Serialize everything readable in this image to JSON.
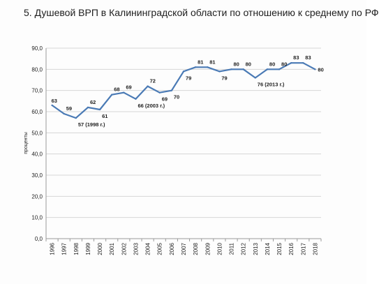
{
  "title": "5. Душевой ВРП в Калининградской области по отношению к среднему по РФ",
  "chart_data": {
    "type": "line",
    "title": "5. Душевой ВРП в Калининградской области по отношению к среднему по РФ",
    "ylabel": "проценты",
    "xlabel": "",
    "ylim": [
      0,
      90
    ],
    "yticks": [
      "0,0",
      "10,0",
      "20,0",
      "30,0",
      "40,0",
      "50,0",
      "60,0",
      "70,0",
      "80,0",
      "90,0"
    ],
    "grid": true,
    "legend": "none",
    "line_color": "#4a7ab5",
    "categories": [
      "1996",
      "1997",
      "1998",
      "1999",
      "2000",
      "2001",
      "2002",
      "2003",
      "2004",
      "2005",
      "2006",
      "2007",
      "2008",
      "2009",
      "2010",
      "2011",
      "2012",
      "2013",
      "2014",
      "2015",
      "2016",
      "2017",
      "2018"
    ],
    "values": [
      63,
      59,
      57,
      62,
      61,
      68,
      69,
      66,
      72,
      69,
      70,
      79,
      81,
      81,
      79,
      80,
      80,
      76,
      80,
      80,
      83,
      83,
      80
    ],
    "data_labels": [
      "63",
      "59",
      "57 (1998 г.)",
      "62",
      "61",
      "68",
      "69",
      "66 (2003 г.)",
      "72",
      "69",
      "70",
      "79",
      "81",
      "81",
      "79",
      "80",
      "80",
      "76 (2013 г.)",
      "80",
      "80",
      "83",
      "83",
      "80"
    ]
  }
}
